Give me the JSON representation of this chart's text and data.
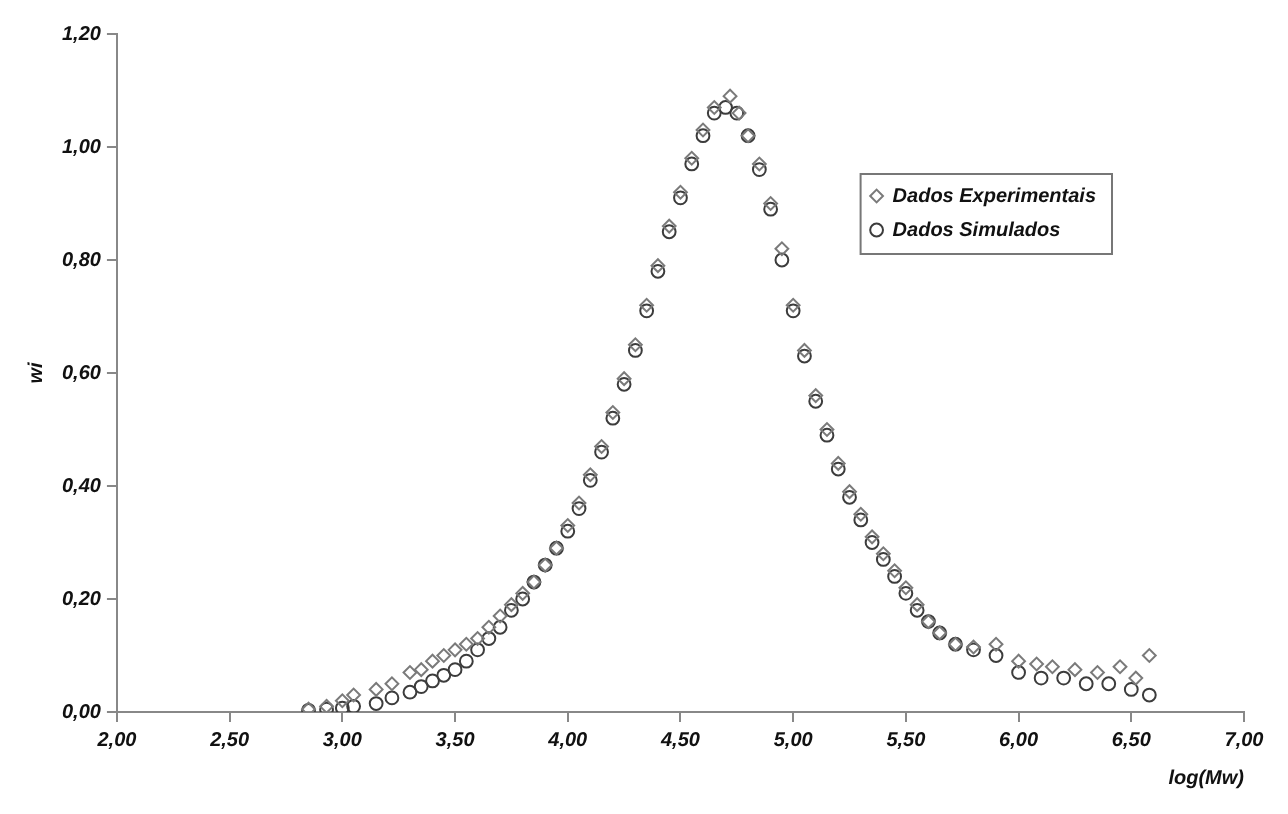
{
  "chart_data": {
    "type": "scatter",
    "xlabel": "log(Mw)",
    "ylabel": "wi",
    "legend": "top right",
    "grid": false,
    "xlim": [
      2,
      7
    ],
    "ylim": [
      0,
      1.2
    ],
    "xticks": [
      {
        "value": 2,
        "label": "2,00"
      },
      {
        "value": 2.5,
        "label": "2,50"
      },
      {
        "value": 3,
        "label": "3,00"
      },
      {
        "value": 3.5,
        "label": "3,50"
      },
      {
        "value": 4,
        "label": "4,00"
      },
      {
        "value": 4.5,
        "label": "4,50"
      },
      {
        "value": 5,
        "label": "5,00"
      },
      {
        "value": 5.5,
        "label": "5,50"
      },
      {
        "value": 6,
        "label": "6,00"
      },
      {
        "value": 6.5,
        "label": "6,50"
      },
      {
        "value": 7,
        "label": "7,00"
      }
    ],
    "yticks": [
      {
        "value": 0,
        "label": "0,00"
      },
      {
        "value": 0.2,
        "label": "0,20"
      },
      {
        "value": 0.4,
        "label": "0,40"
      },
      {
        "value": 0.6,
        "label": "0,60"
      },
      {
        "value": 0.8,
        "label": "0,80"
      },
      {
        "value": 1,
        "label": "1,00"
      },
      {
        "value": 1.2,
        "label": "1,20"
      }
    ],
    "series": [
      {
        "name": "Dados Experimentais",
        "color": "#7a7a7a",
        "marker": "diamond",
        "x": [
          2.85,
          2.93,
          3.0,
          3.05,
          3.15,
          3.22,
          3.3,
          3.35,
          3.4,
          3.45,
          3.5,
          3.55,
          3.6,
          3.65,
          3.7,
          3.75,
          3.8,
          3.85,
          3.9,
          3.95,
          4.0,
          4.05,
          4.1,
          4.15,
          4.2,
          4.25,
          4.3,
          4.35,
          4.4,
          4.45,
          4.5,
          4.55,
          4.6,
          4.65,
          4.72,
          4.76,
          4.8,
          4.85,
          4.9,
          4.95,
          5.0,
          5.05,
          5.1,
          5.15,
          5.2,
          5.25,
          5.3,
          5.35,
          5.4,
          5.45,
          5.5,
          5.55,
          5.6,
          5.65,
          5.72,
          5.8,
          5.9,
          6.0,
          6.08,
          6.15,
          6.25,
          6.35,
          6.45,
          6.52,
          6.58
        ],
        "values": [
          0.005,
          0.01,
          0.02,
          0.03,
          0.04,
          0.05,
          0.07,
          0.075,
          0.09,
          0.1,
          0.11,
          0.12,
          0.13,
          0.15,
          0.17,
          0.19,
          0.21,
          0.23,
          0.26,
          0.29,
          0.33,
          0.37,
          0.42,
          0.47,
          0.53,
          0.59,
          0.65,
          0.72,
          0.79,
          0.86,
          0.92,
          0.98,
          1.03,
          1.07,
          1.09,
          1.06,
          1.02,
          0.97,
          0.9,
          0.82,
          0.72,
          0.64,
          0.56,
          0.5,
          0.44,
          0.39,
          0.35,
          0.31,
          0.28,
          0.25,
          0.22,
          0.19,
          0.16,
          0.14,
          0.12,
          0.115,
          0.12,
          0.09,
          0.085,
          0.08,
          0.075,
          0.07,
          0.08,
          0.06,
          0.1
        ]
      },
      {
        "name": "Dados Simulados",
        "color": "#3c3c3c",
        "marker": "circle",
        "x": [
          2.85,
          2.93,
          3.0,
          3.05,
          3.15,
          3.22,
          3.3,
          3.35,
          3.4,
          3.45,
          3.5,
          3.55,
          3.6,
          3.65,
          3.7,
          3.75,
          3.8,
          3.85,
          3.9,
          3.95,
          4.0,
          4.05,
          4.1,
          4.15,
          4.2,
          4.25,
          4.3,
          4.35,
          4.4,
          4.45,
          4.5,
          4.55,
          4.6,
          4.65,
          4.7,
          4.75,
          4.8,
          4.85,
          4.9,
          4.95,
          5.0,
          5.05,
          5.1,
          5.15,
          5.2,
          5.25,
          5.3,
          5.35,
          5.4,
          5.45,
          5.5,
          5.55,
          5.6,
          5.65,
          5.72,
          5.8,
          5.9,
          6.0,
          6.1,
          6.2,
          6.3,
          6.4,
          6.5,
          6.58
        ],
        "values": [
          0.003,
          0.005,
          0.007,
          0.01,
          0.015,
          0.025,
          0.035,
          0.045,
          0.055,
          0.065,
          0.075,
          0.09,
          0.11,
          0.13,
          0.15,
          0.18,
          0.2,
          0.23,
          0.26,
          0.29,
          0.32,
          0.36,
          0.41,
          0.46,
          0.52,
          0.58,
          0.64,
          0.71,
          0.78,
          0.85,
          0.91,
          0.97,
          1.02,
          1.06,
          1.07,
          1.06,
          1.02,
          0.96,
          0.89,
          0.8,
          0.71,
          0.63,
          0.55,
          0.49,
          0.43,
          0.38,
          0.34,
          0.3,
          0.27,
          0.24,
          0.21,
          0.18,
          0.16,
          0.14,
          0.12,
          0.11,
          0.1,
          0.07,
          0.06,
          0.06,
          0.05,
          0.05,
          0.04,
          0.03
        ]
      }
    ]
  }
}
